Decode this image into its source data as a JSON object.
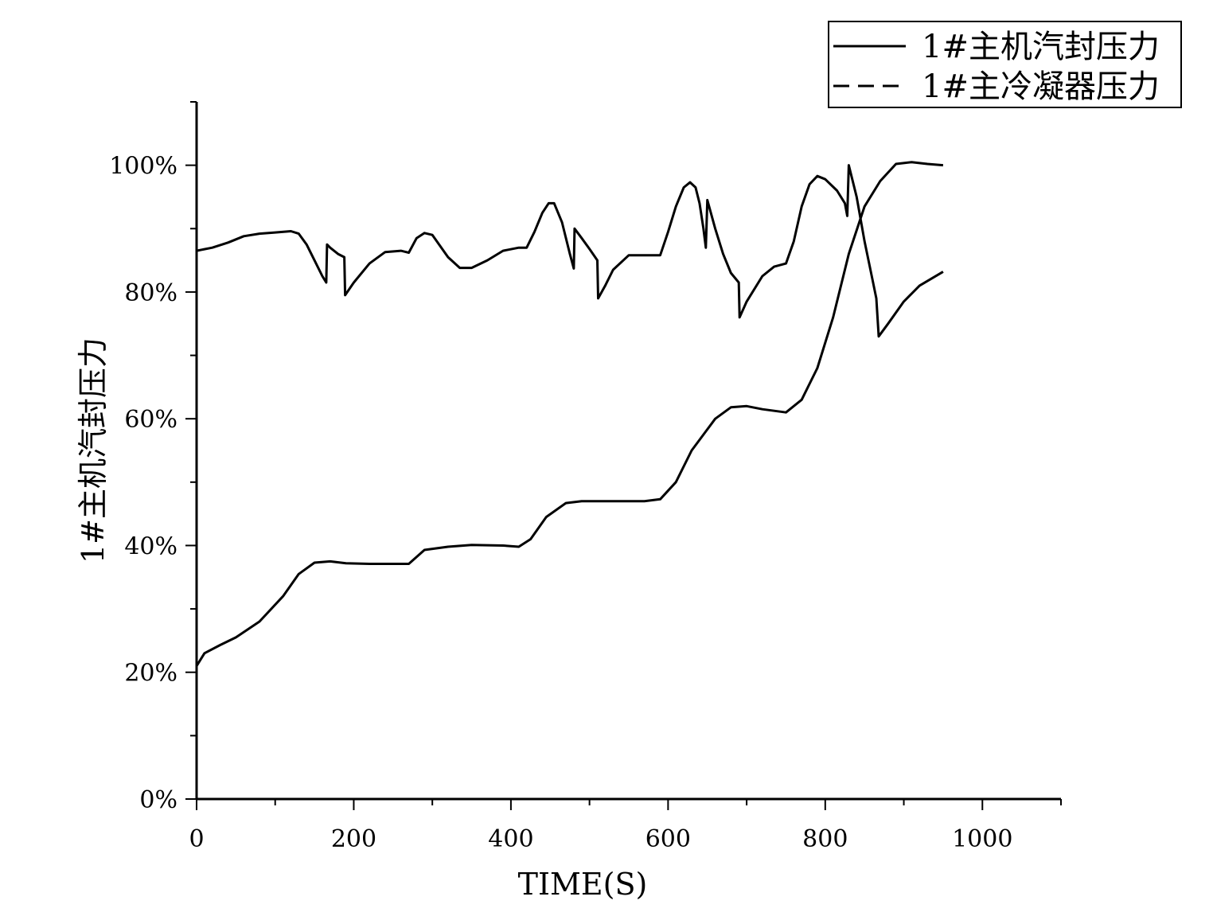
{
  "chart_data": {
    "type": "line",
    "xlabel": "TIME(S)",
    "ylabel": "1#主机汽封压力",
    "xlim": [
      0,
      1100
    ],
    "ylim": [
      0,
      110
    ],
    "x_ticks": [
      "0",
      "200",
      "400",
      "600",
      "800",
      "1000"
    ],
    "y_ticks": [
      "0%",
      "20%",
      "40%",
      "60%",
      "80%",
      "100%"
    ],
    "legend_position": "top-right",
    "grid": false,
    "series": [
      {
        "name": "1#主机汽封压力",
        "style": "solid",
        "color": "#000000",
        "points": [
          [
            0,
            86.5
          ],
          [
            20,
            87
          ],
          [
            40,
            87.8
          ],
          [
            60,
            88.8
          ],
          [
            80,
            89.2
          ],
          [
            100,
            89.4
          ],
          [
            120,
            89.6
          ],
          [
            130,
            89.2
          ],
          [
            140,
            87.5
          ],
          [
            150,
            85
          ],
          [
            160,
            82.5
          ],
          [
            165,
            81.5
          ],
          [
            166,
            87.5
          ],
          [
            170,
            87
          ],
          [
            180,
            86
          ],
          [
            188,
            85.5
          ],
          [
            189,
            79.5
          ],
          [
            200,
            81.5
          ],
          [
            220,
            84.5
          ],
          [
            240,
            86.3
          ],
          [
            260,
            86.5
          ],
          [
            270,
            86.2
          ],
          [
            280,
            88.5
          ],
          [
            290,
            89.3
          ],
          [
            300,
            89
          ],
          [
            320,
            85.5
          ],
          [
            335,
            83.8
          ],
          [
            350,
            83.8
          ],
          [
            370,
            85
          ],
          [
            390,
            86.5
          ],
          [
            410,
            87
          ],
          [
            420,
            87
          ],
          [
            430,
            89.5
          ],
          [
            440,
            92.5
          ],
          [
            448,
            94
          ],
          [
            455,
            94
          ],
          [
            465,
            91
          ],
          [
            475,
            86
          ],
          [
            480,
            83.7
          ],
          [
            481,
            90
          ],
          [
            490,
            88.5
          ],
          [
            500,
            86.8
          ],
          [
            510,
            85
          ],
          [
            511,
            79
          ],
          [
            520,
            81
          ],
          [
            530,
            83.5
          ],
          [
            550,
            85.8
          ],
          [
            570,
            85.8
          ],
          [
            590,
            85.8
          ],
          [
            600,
            89.5
          ],
          [
            610,
            93.5
          ],
          [
            620,
            96.5
          ],
          [
            628,
            97.3
          ],
          [
            635,
            96.5
          ],
          [
            640,
            94
          ],
          [
            645,
            90
          ],
          [
            648,
            87
          ],
          [
            650,
            94.5
          ],
          [
            660,
            90
          ],
          [
            670,
            86
          ],
          [
            680,
            83
          ],
          [
            690,
            81.5
          ],
          [
            691,
            76
          ],
          [
            700,
            78.5
          ],
          [
            720,
            82.5
          ],
          [
            735,
            84
          ],
          [
            750,
            84.5
          ],
          [
            760,
            88
          ],
          [
            770,
            93.5
          ],
          [
            780,
            97
          ],
          [
            790,
            98.3
          ],
          [
            800,
            97.8
          ],
          [
            815,
            96
          ],
          [
            825,
            94
          ],
          [
            828,
            92
          ],
          [
            830,
            100
          ],
          [
            840,
            95
          ],
          [
            850,
            88
          ],
          [
            860,
            82
          ],
          [
            865,
            79
          ],
          [
            868,
            73
          ],
          [
            880,
            75
          ],
          [
            900,
            78.5
          ],
          [
            920,
            81
          ],
          [
            950,
            83.2
          ]
        ]
      },
      {
        "name": "1#主冷凝器压力",
        "style": "dashed",
        "color": "#000000",
        "points": [
          [
            0,
            21
          ],
          [
            10,
            23
          ],
          [
            30,
            24.3
          ],
          [
            50,
            25.5
          ],
          [
            80,
            28
          ],
          [
            110,
            32
          ],
          [
            130,
            35.5
          ],
          [
            150,
            37.3
          ],
          [
            170,
            37.5
          ],
          [
            190,
            37.2
          ],
          [
            220,
            37.1
          ],
          [
            270,
            37.1
          ],
          [
            290,
            39.3
          ],
          [
            320,
            39.8
          ],
          [
            350,
            40.1
          ],
          [
            390,
            40
          ],
          [
            410,
            39.8
          ],
          [
            425,
            41
          ],
          [
            445,
            44.5
          ],
          [
            470,
            46.7
          ],
          [
            490,
            47
          ],
          [
            530,
            47
          ],
          [
            570,
            47
          ],
          [
            590,
            47.3
          ],
          [
            610,
            50
          ],
          [
            630,
            55
          ],
          [
            660,
            60
          ],
          [
            680,
            61.8
          ],
          [
            700,
            62
          ],
          [
            720,
            61.5
          ],
          [
            750,
            61
          ],
          [
            770,
            63
          ],
          [
            790,
            68
          ],
          [
            810,
            76
          ],
          [
            830,
            86
          ],
          [
            850,
            93.5
          ],
          [
            870,
            97.5
          ],
          [
            890,
            100.2
          ],
          [
            910,
            100.5
          ],
          [
            930,
            100.2
          ],
          [
            950,
            100
          ]
        ]
      }
    ]
  }
}
